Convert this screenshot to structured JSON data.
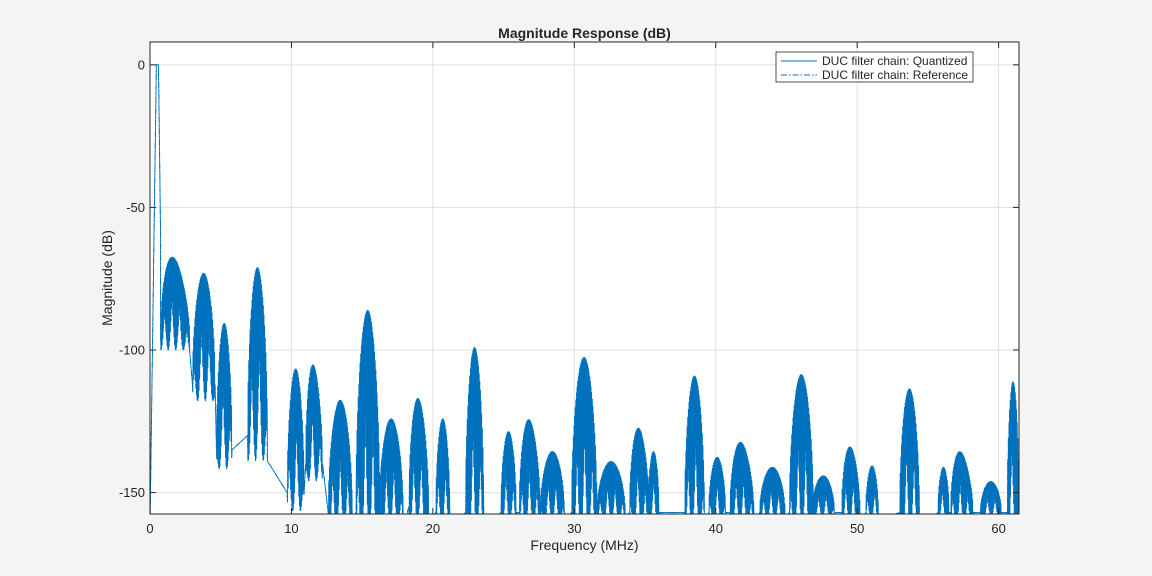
{
  "chart_data": {
    "type": "line",
    "title": "Magnitude Response (dB)",
    "xlabel": "Frequency (MHz)",
    "ylabel": "Magnitude (dB)",
    "xlim": [
      0,
      61.44
    ],
    "ylim": [
      -157.5,
      8
    ],
    "xticks": [
      0,
      10,
      20,
      30,
      40,
      50,
      60
    ],
    "yticks": [
      0,
      -50,
      -100,
      -150
    ],
    "xtick_labels": [
      "0",
      "10",
      "20",
      "30",
      "40",
      "50",
      "60"
    ],
    "ytick_labels": [
      "0",
      "-50",
      "-100",
      "-150"
    ],
    "grid": true,
    "legend": {
      "placement": "top-right"
    },
    "series": [
      {
        "name": "DUC filter chain: Quantized",
        "color": "#0072BD",
        "line_style": "solid",
        "passband": {
          "edge_mhz": 0.6,
          "level_db": 0,
          "transition_end_mhz": 0.75,
          "transition_end_db": -61
        },
        "lobes": [
          {
            "f1": 0.75,
            "f2": 2.8,
            "peak": -61,
            "floor": -95,
            "slope": -14
          },
          {
            "f1": 3.0,
            "f2": 4.6,
            "peak": -72.5,
            "floor": -112,
            "slope": -1
          },
          {
            "f1": 4.7,
            "f2": 5.8,
            "peak": -90,
            "floor": -135,
            "slope": -1
          },
          {
            "f1": 6.9,
            "f2": 8.3,
            "peak": -70.5,
            "floor": -130,
            "slope": -1
          },
          {
            "f1": 9.7,
            "f2": 10.9,
            "peak": -106.5,
            "floor": -150,
            "slope": 0
          },
          {
            "f1": 11.0,
            "f2": 12.2,
            "peak": -99.5,
            "floor": -140,
            "slope": -12
          },
          {
            "f1": 12.6,
            "f2": 14.3,
            "peak": -117.5,
            "floor": -157,
            "slope": 0
          },
          {
            "f1": 14.55,
            "f2": 16.25,
            "peak": -85,
            "floor": -157,
            "slope": -2
          },
          {
            "f1": 16.2,
            "f2": 17.9,
            "peak": -124,
            "floor": -157,
            "slope": 0
          },
          {
            "f1": 18.3,
            "f2": 19.7,
            "peak": -113,
            "floor": -155,
            "slope": -8
          },
          {
            "f1": 20.2,
            "f2": 21.2,
            "peak": -124,
            "floor": -157,
            "slope": 0
          },
          {
            "f1": 22.3,
            "f2": 23.6,
            "peak": -98.5,
            "floor": -157,
            "slope": -1
          },
          {
            "f1": 24.8,
            "f2": 25.9,
            "peak": -128.5,
            "floor": -157,
            "slope": 0
          },
          {
            "f1": 26.1,
            "f2": 27.6,
            "peak": -120.5,
            "floor": -157,
            "slope": -8
          },
          {
            "f1": 27.6,
            "f2": 29.3,
            "peak": -135.5,
            "floor": -157,
            "slope": 0
          },
          {
            "f1": 29.8,
            "f2": 31.6,
            "peak": -101.5,
            "floor": -157,
            "slope": -2
          },
          {
            "f1": 31.6,
            "f2": 33.6,
            "peak": -139,
            "floor": -157,
            "slope": 0
          },
          {
            "f1": 33.9,
            "f2": 35.3,
            "peak": -123.5,
            "floor": -157,
            "slope": -8
          },
          {
            "f1": 35.2,
            "f2": 36.0,
            "peak": -135.5,
            "floor": -157,
            "slope": 0
          },
          {
            "f1": 37.8,
            "f2": 39.2,
            "peak": -108.5,
            "floor": -157,
            "slope": -1
          },
          {
            "f1": 39.5,
            "f2": 40.7,
            "peak": -137.5,
            "floor": -157,
            "slope": 0
          },
          {
            "f1": 41.0,
            "f2": 42.7,
            "peak": -128.5,
            "floor": -157,
            "slope": -8
          },
          {
            "f1": 43.1,
            "f2": 44.9,
            "peak": -141,
            "floor": -157,
            "slope": 0
          },
          {
            "f1": 45.2,
            "f2": 46.9,
            "peak": -108.5,
            "floor": -157,
            "slope": 0
          },
          {
            "f1": 46.8,
            "f2": 48.4,
            "peak": -144,
            "floor": -157,
            "slope": 0
          },
          {
            "f1": 48.9,
            "f2": 50.2,
            "peak": -131,
            "floor": -157,
            "slope": -6
          },
          {
            "f1": 50.6,
            "f2": 51.5,
            "peak": -140.5,
            "floor": -157,
            "slope": 0
          },
          {
            "f1": 53.0,
            "f2": 54.4,
            "peak": -113,
            "floor": -157,
            "slope": -1
          },
          {
            "f1": 55.7,
            "f2": 56.5,
            "peak": -141,
            "floor": -157,
            "slope": 0
          },
          {
            "f1": 56.6,
            "f2": 58.2,
            "peak": -131,
            "floor": -157,
            "slope": -10
          },
          {
            "f1": 58.7,
            "f2": 60.2,
            "peak": -146,
            "floor": -157,
            "slope": 0
          },
          {
            "f1": 60.6,
            "f2": 61.44,
            "peak": -111,
            "floor": -157,
            "slope": 0
          }
        ]
      },
      {
        "name": "DUC filter chain: Reference",
        "color": "#0072BD",
        "line_style": "dash-dot",
        "same_as": "DUC filter chain: Quantized"
      }
    ]
  }
}
